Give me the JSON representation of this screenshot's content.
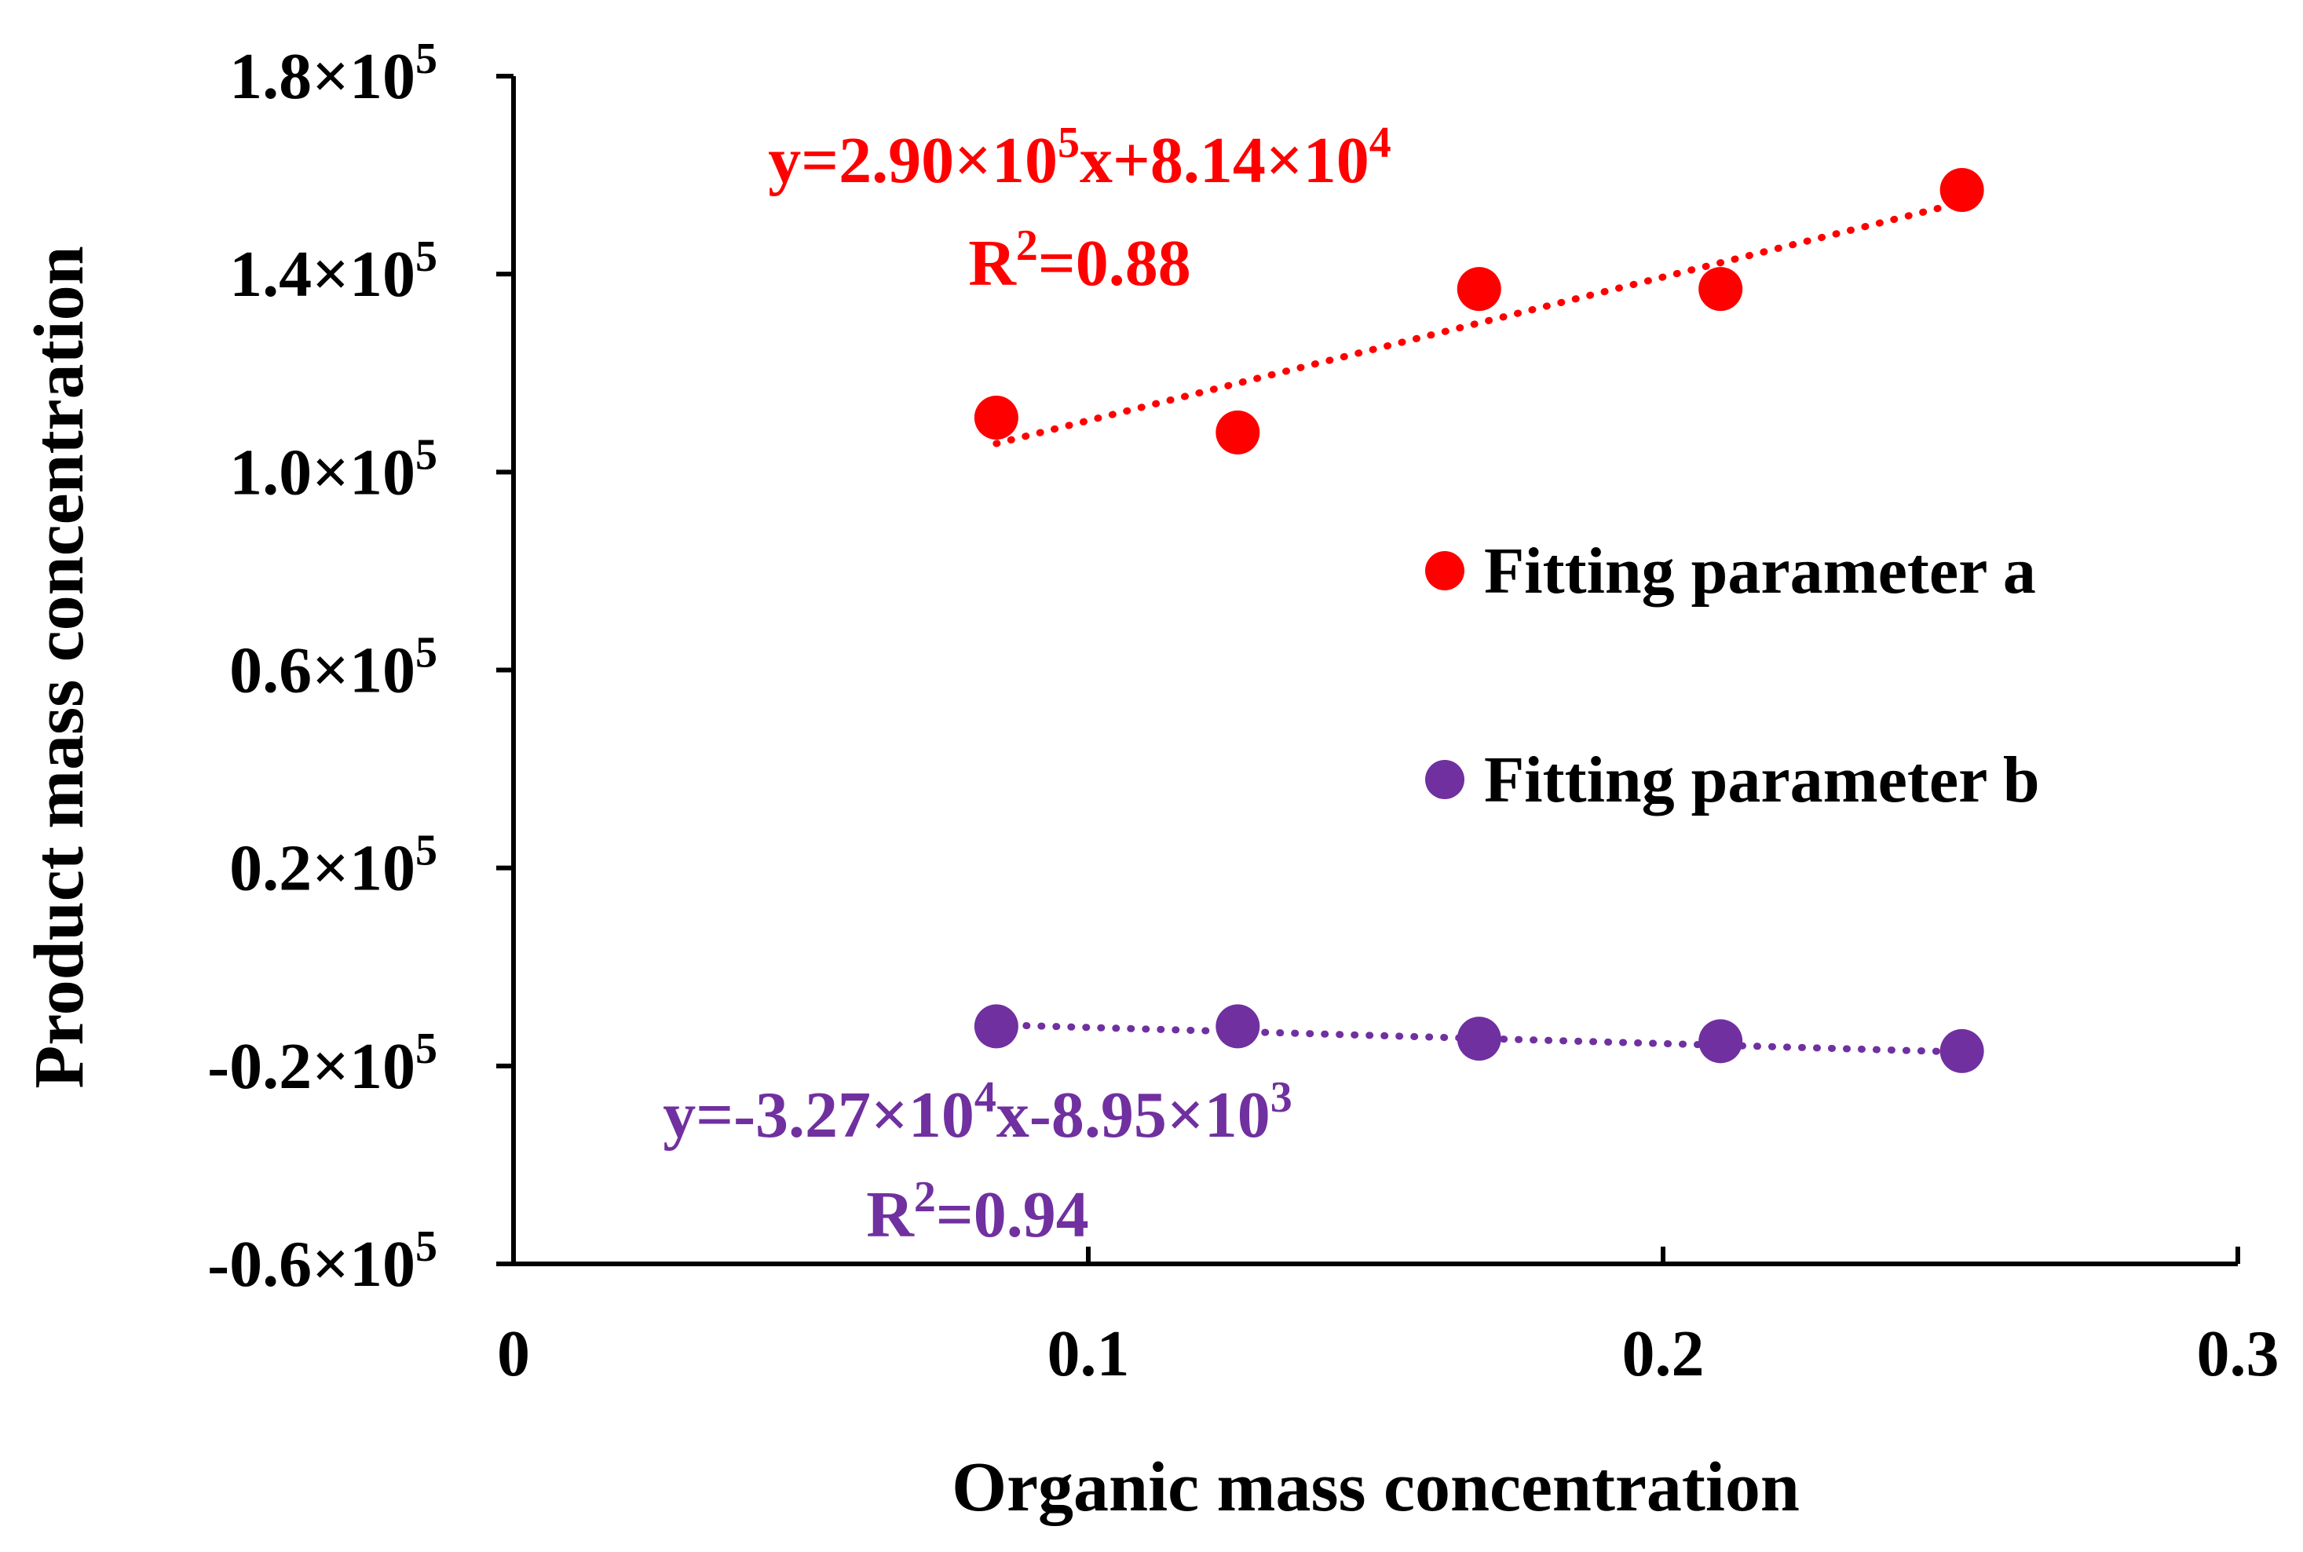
{
  "chart_data": {
    "type": "scatter",
    "title": "",
    "xlabel": "Organic mass concentration",
    "ylabel": "Product mass concentration",
    "xlim": [
      0,
      0.3
    ],
    "ylim": [
      -60000,
      180000
    ],
    "x_ticks": [
      {
        "value": 0,
        "label": "0"
      },
      {
        "value": 0.1,
        "label": "0.1"
      },
      {
        "value": 0.2,
        "label": "0.2"
      },
      {
        "value": 0.3,
        "label": "0.3"
      }
    ],
    "y_ticks": [
      {
        "value": 180000,
        "mantissa": "1.8×10",
        "exp": "5"
      },
      {
        "value": 140000,
        "mantissa": "1.4×10",
        "exp": "5"
      },
      {
        "value": 100000,
        "mantissa": "1.0×10",
        "exp": "5"
      },
      {
        "value": 60000,
        "mantissa": "0.6×10",
        "exp": "5"
      },
      {
        "value": 20000,
        "mantissa": "0.2×10",
        "exp": "5"
      },
      {
        "value": -20000,
        "mantissa": "-0.2×10",
        "exp": "5"
      },
      {
        "value": -60000,
        "mantissa": "-0.6×10",
        "exp": "5"
      }
    ],
    "legend_position": "right-middle",
    "series": [
      {
        "name": "Fitting parameter a",
        "color": "#ff0000",
        "x": [
          0.084,
          0.126,
          0.168,
          0.21,
          0.252
        ],
        "y": [
          111000,
          108000,
          137000,
          137000,
          157000
        ],
        "trendline": {
          "slope": 290000,
          "intercept": 81400,
          "x_range": [
            0.084,
            0.252
          ],
          "style": "dotted"
        },
        "equation": {
          "parts": [
            "y=2.90×10",
            "5",
            "x+8.14×10",
            "4"
          ],
          "r2_prefix": "R",
          "r2_exp": "2",
          "r2_value": "=0.88"
        }
      },
      {
        "name": "Fitting parameter b",
        "color": "#7030a0",
        "x": [
          0.084,
          0.126,
          0.168,
          0.21,
          0.252
        ],
        "y": [
          -12000,
          -12000,
          -14500,
          -15000,
          -17000
        ],
        "trendline": {
          "slope": -32700,
          "intercept": -8950,
          "x_range": [
            0.084,
            0.252
          ],
          "style": "dotted"
        },
        "equation": {
          "parts": [
            "y=-3.27×10",
            "4",
            "x-8.95×10",
            "3"
          ],
          "r2_prefix": "R",
          "r2_exp": "2",
          "r2_value": "=0.94"
        }
      }
    ]
  }
}
